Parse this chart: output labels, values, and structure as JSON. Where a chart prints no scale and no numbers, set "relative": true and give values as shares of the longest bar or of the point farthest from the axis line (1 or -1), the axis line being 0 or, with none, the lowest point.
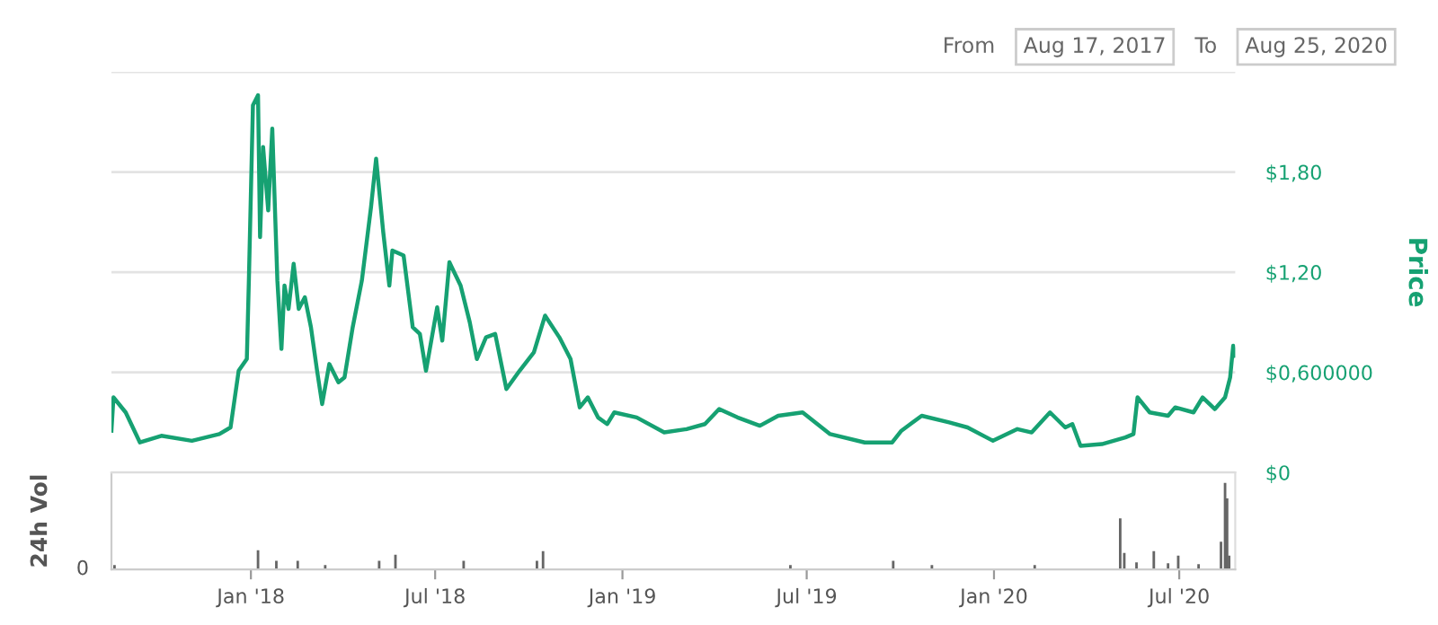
{
  "chart_data": [
    {
      "type": "line",
      "ylabel": "Price",
      "annotations": [
        "From",
        "Aug 17, 2017",
        "To",
        "Aug 25, 2020"
      ],
      "xlim": [
        "2017-08-17",
        "2020-08-25"
      ],
      "ylim": [
        0,
        2.4
      ],
      "yticks": [
        {
          "value": 0,
          "label": "$0"
        },
        {
          "value": 0.6,
          "label": "$0,600000"
        },
        {
          "value": 1.2,
          "label": "$1,20"
        },
        {
          "value": 1.8,
          "label": "$1,80"
        },
        {
          "value": 2.4,
          "label": null
        }
      ],
      "grid": "y",
      "tick_labels": "y",
      "legend": false,
      "series": [
        {
          "color": "#16a172",
          "x": [
            "2017-08-17",
            "2017-08-19",
            "2017-08-31",
            "2017-09-14",
            "2017-10-05",
            "2017-11-04",
            "2017-12-01",
            "2017-12-12",
            "2017-12-20",
            "2017-12-28",
            "2017-12-30",
            "2018-01-03",
            "2018-01-08",
            "2018-01-10",
            "2018-01-13",
            "2018-01-18",
            "2018-01-22",
            "2018-01-27",
            "2018-01-31",
            "2018-02-03",
            "2018-02-07",
            "2018-02-12",
            "2018-02-17",
            "2018-02-23",
            "2018-03-01",
            "2018-03-07",
            "2018-03-12",
            "2018-03-19",
            "2018-03-28",
            "2018-04-03",
            "2018-04-11",
            "2018-04-20",
            "2018-04-29",
            "2018-05-04",
            "2018-05-11",
            "2018-05-17",
            "2018-05-20",
            "2018-05-31",
            "2018-06-09",
            "2018-06-16",
            "2018-06-22",
            "2018-07-03",
            "2018-07-08",
            "2018-07-15",
            "2018-07-26",
            "2018-08-04",
            "2018-08-11",
            "2018-08-20",
            "2018-08-29",
            "2018-09-09",
            "2018-09-22",
            "2018-10-06",
            "2018-10-17",
            "2018-10-31",
            "2018-11-11",
            "2018-11-20",
            "2018-11-28",
            "2018-12-08",
            "2018-12-17",
            "2018-12-24",
            "2019-01-15",
            "2019-02-11",
            "2019-03-05",
            "2019-03-23",
            "2019-04-06",
            "2019-04-24",
            "2019-05-16",
            "2019-06-03",
            "2019-06-27",
            "2019-07-24",
            "2019-08-27",
            "2019-09-23",
            "2019-10-02",
            "2019-10-22",
            "2019-11-18",
            "2019-12-06",
            "2019-12-31",
            "2020-01-24",
            "2020-02-07",
            "2020-02-25",
            "2020-03-11",
            "2020-03-18",
            "2020-03-26",
            "2020-04-16",
            "2020-05-09",
            "2020-05-17",
            "2020-05-21",
            "2020-06-02",
            "2020-06-20",
            "2020-06-27",
            "2020-07-15",
            "2020-07-24",
            "2020-08-05",
            "2020-08-15",
            "2020-08-20",
            "2020-08-23",
            "2020-08-25"
          ],
          "values": [
            0.25,
            0.45,
            0.36,
            0.18,
            0.22,
            0.19,
            0.23,
            0.27,
            0.61,
            0.68,
            1.15,
            2.2,
            2.26,
            1.41,
            1.95,
            1.57,
            2.06,
            1.15,
            0.74,
            1.12,
            0.98,
            1.25,
            0.98,
            1.05,
            0.87,
            0.61,
            0.41,
            0.65,
            0.54,
            0.57,
            0.87,
            1.15,
            1.59,
            1.88,
            1.44,
            1.12,
            1.33,
            1.3,
            0.87,
            0.83,
            0.61,
            0.99,
            0.79,
            1.26,
            1.12,
            0.9,
            0.68,
            0.81,
            0.83,
            0.5,
            0.61,
            0.72,
            0.94,
            0.81,
            0.68,
            0.39,
            0.45,
            0.33,
            0.29,
            0.36,
            0.33,
            0.24,
            0.26,
            0.29,
            0.38,
            0.33,
            0.28,
            0.34,
            0.36,
            0.23,
            0.18,
            0.18,
            0.25,
            0.34,
            0.3,
            0.27,
            0.19,
            0.26,
            0.24,
            0.36,
            0.27,
            0.29,
            0.16,
            0.17,
            0.21,
            0.23,
            0.45,
            0.36,
            0.34,
            0.39,
            0.36,
            0.45,
            0.38,
            0.45,
            0.57,
            0.76,
            0.7
          ]
        }
      ]
    },
    {
      "type": "bar",
      "ylabel": "24h Vol",
      "relative": true,
      "annotations": [
        "0"
      ],
      "xlim": [
        "2017-08-17",
        "2020-08-25"
      ],
      "xticks": [
        {
          "value": "2018-01-01",
          "label": "Jan '18"
        },
        {
          "value": "2018-07-01",
          "label": "Jul '18"
        },
        {
          "value": "2019-01-01",
          "label": "Jan '19"
        },
        {
          "value": "2019-07-01",
          "label": "Jul '19"
        },
        {
          "value": "2020-01-01",
          "label": "Jan '20"
        },
        {
          "value": "2020-07-01",
          "label": "Jul '20"
        }
      ],
      "tick_labels": "x",
      "legend": false,
      "series": [
        {
          "color": "#666666",
          "x": [
            "2017-08-20",
            "2018-01-08",
            "2018-01-26",
            "2018-02-16",
            "2018-03-15",
            "2018-05-07",
            "2018-05-23",
            "2018-07-29",
            "2018-10-09",
            "2018-10-15",
            "2019-06-15",
            "2019-09-24",
            "2019-11-01",
            "2020-02-10",
            "2020-05-04",
            "2020-05-08",
            "2020-05-20",
            "2020-06-06",
            "2020-06-20",
            "2020-06-30",
            "2020-07-20",
            "2020-08-11",
            "2020-08-15",
            "2020-08-17",
            "2020-08-19"
          ],
          "values": [
            0.05,
            0.22,
            0.1,
            0.1,
            0.05,
            0.1,
            0.17,
            0.1,
            0.1,
            0.21,
            0.05,
            0.1,
            0.05,
            0.05,
            0.59,
            0.19,
            0.08,
            0.21,
            0.07,
            0.16,
            0.06,
            0.32,
            1.0,
            0.82,
            0.16
          ]
        }
      ]
    }
  ]
}
